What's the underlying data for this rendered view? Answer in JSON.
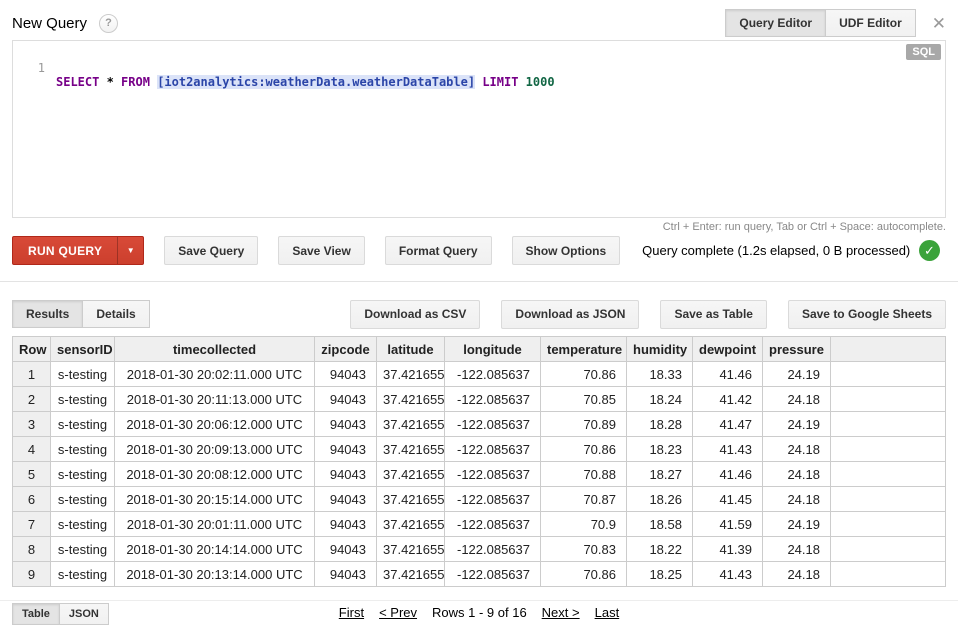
{
  "header": {
    "title": "New Query",
    "help_icon": "?",
    "tabs": [
      "Query Editor",
      "UDF Editor"
    ],
    "close_icon": "✕"
  },
  "editor": {
    "line_number": "1",
    "badge": "SQL",
    "query": {
      "kw1": "SELECT",
      "star": " * ",
      "kw2": "FROM",
      "space1": " ",
      "table_ref": "[iot2analytics:weatherData.weatherDataTable]",
      "space2": " ",
      "kw3": "LIMIT",
      "number": " 1000"
    },
    "hint": "Ctrl + Enter: run query, Tab or Ctrl + Space: autocomplete."
  },
  "toolbar": {
    "run_query": "RUN QUERY",
    "caret_icon": "▼",
    "buttons": [
      "Save Query",
      "Save View",
      "Format Query",
      "Show Options"
    ],
    "status": "Query complete (1.2s elapsed, 0 B processed)",
    "status_icon": "✓"
  },
  "results": {
    "tabs": [
      "Results",
      "Details"
    ],
    "actions": [
      "Download as CSV",
      "Download as JSON",
      "Save as Table",
      "Save to Google Sheets"
    ],
    "table": {
      "columns": [
        "Row",
        "sensorID",
        "timecollected",
        "zipcode",
        "latitude",
        "longitude",
        "temperature",
        "humidity",
        "dewpoint",
        "pressure",
        ""
      ],
      "rows": [
        [
          "1",
          "s-testing",
          "2018-01-30 20:02:11.000 UTC",
          "94043",
          "37.421655",
          "-122.085637",
          "70.86",
          "18.33",
          "41.46",
          "24.19",
          ""
        ],
        [
          "2",
          "s-testing",
          "2018-01-30 20:11:13.000 UTC",
          "94043",
          "37.421655",
          "-122.085637",
          "70.85",
          "18.24",
          "41.42",
          "24.18",
          ""
        ],
        [
          "3",
          "s-testing",
          "2018-01-30 20:06:12.000 UTC",
          "94043",
          "37.421655",
          "-122.085637",
          "70.89",
          "18.28",
          "41.47",
          "24.19",
          ""
        ],
        [
          "4",
          "s-testing",
          "2018-01-30 20:09:13.000 UTC",
          "94043",
          "37.421655",
          "-122.085637",
          "70.86",
          "18.23",
          "41.43",
          "24.18",
          ""
        ],
        [
          "5",
          "s-testing",
          "2018-01-30 20:08:12.000 UTC",
          "94043",
          "37.421655",
          "-122.085637",
          "70.88",
          "18.27",
          "41.46",
          "24.18",
          ""
        ],
        [
          "6",
          "s-testing",
          "2018-01-30 20:15:14.000 UTC",
          "94043",
          "37.421655",
          "-122.085637",
          "70.87",
          "18.26",
          "41.45",
          "24.18",
          ""
        ],
        [
          "7",
          "s-testing",
          "2018-01-30 20:01:11.000 UTC",
          "94043",
          "37.421655",
          "-122.085637",
          "70.9",
          "18.58",
          "41.59",
          "24.19",
          ""
        ],
        [
          "8",
          "s-testing",
          "2018-01-30 20:14:14.000 UTC",
          "94043",
          "37.421655",
          "-122.085637",
          "70.83",
          "18.22",
          "41.39",
          "24.18",
          ""
        ],
        [
          "9",
          "s-testing",
          "2018-01-30 20:13:14.000 UTC",
          "94043",
          "37.421655",
          "-122.085637",
          "70.86",
          "18.25",
          "41.43",
          "24.18",
          ""
        ]
      ]
    },
    "footer": {
      "view_tabs": [
        "Table",
        "JSON"
      ],
      "pagination": {
        "first": "First",
        "prev": "< Prev",
        "label": "Rows 1 - 9 of 16",
        "next": "Next >",
        "last": "Last"
      }
    }
  },
  "colors": {
    "run_button": "#d84a38",
    "status_ok": "#3ba33b",
    "sql_badge": "#a8a8a8",
    "keyword": "#770088",
    "number": "#116644",
    "table_ref_text": "#2b45a8",
    "table_ref_bg": "#dbe3f8"
  }
}
